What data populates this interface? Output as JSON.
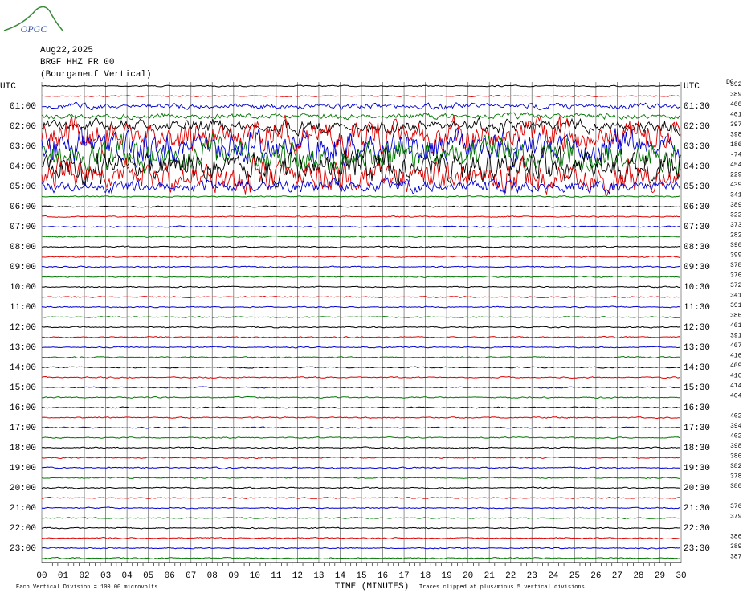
{
  "logo": "OPGC",
  "header": {
    "date": "Aug22,2025",
    "station": "BRGF HHZ FR 00",
    "location": "(Bourganeuf Vertical)"
  },
  "left_labels": [
    "UTC",
    "01:00",
    "02:00",
    "03:00",
    "04:00",
    "05:00",
    "06:00",
    "07:00",
    "08:00",
    "09:00",
    "10:00",
    "11:00",
    "12:00",
    "13:00",
    "14:00",
    "15:00",
    "16:00",
    "17:00",
    "18:00",
    "19:00",
    "20:00",
    "21:00",
    "22:00",
    "23:00"
  ],
  "right_labels": [
    "UTC",
    "01:30",
    "02:30",
    "03:30",
    "04:30",
    "05:30",
    "06:30",
    "07:30",
    "08:30",
    "09:30",
    "10:30",
    "11:30",
    "12:30",
    "13:30",
    "14:30",
    "15:30",
    "16:30",
    "17:30",
    "18:30",
    "19:30",
    "20:30",
    "21:30",
    "22:30",
    "23:30"
  ],
  "scale_header": "DC",
  "scale_values": [
    "392",
    "389",
    "400",
    "401",
    "397",
    "398",
    "186",
    "-74",
    "454",
    "229",
    "439",
    "341",
    "389",
    "322",
    "373",
    "282",
    "390",
    "399",
    "378",
    "376",
    "372",
    "341",
    "391",
    "386",
    "401",
    "391",
    "407",
    "416",
    "409",
    "416",
    "414",
    "404",
    null,
    "402",
    "394",
    "402",
    "398",
    "386",
    "382",
    "378",
    "380",
    null,
    "376",
    "379",
    null,
    "386",
    "389",
    "387"
  ],
  "x_ticks": [
    "00",
    "01",
    "02",
    "03",
    "04",
    "05",
    "06",
    "07",
    "08",
    "09",
    "10",
    "11",
    "12",
    "13",
    "14",
    "15",
    "16",
    "17",
    "18",
    "19",
    "20",
    "21",
    "22",
    "23",
    "24",
    "25",
    "26",
    "27",
    "28",
    "29",
    "30"
  ],
  "footer": {
    "division": "Each Vertical Division =  100.00 microvolts",
    "axis_title": "TIME (MINUTES)",
    "clip_note": "Traces clipped at plus/minus 5 vertical divisions"
  }
}
